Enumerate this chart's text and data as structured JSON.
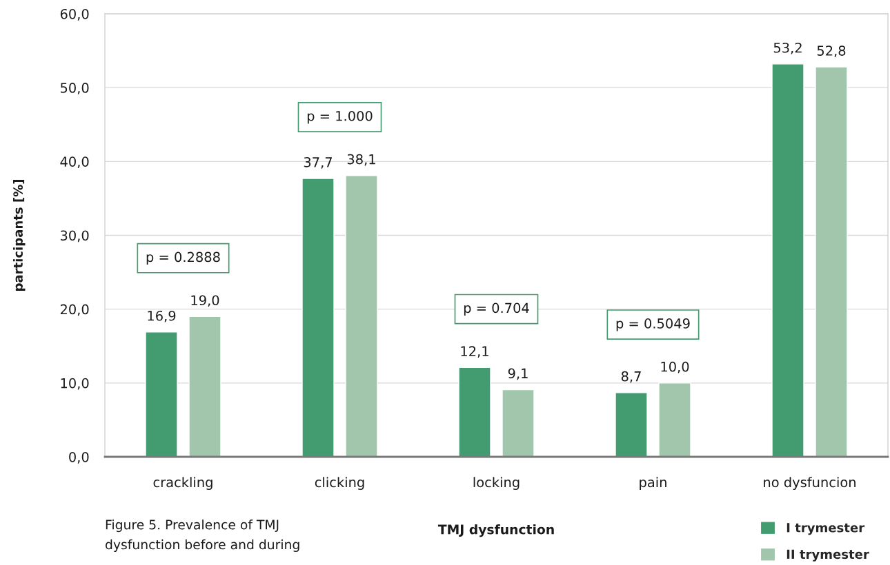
{
  "chart_data": {
    "type": "bar",
    "title": "Figure 5. Prevalence of TMJ dysfunction before and during",
    "xlabel": "TMJ dysfunction",
    "ylabel": "participants [%]",
    "categories": [
      "crackling",
      "clicking",
      "locking",
      "pain",
      "no dysfuncion"
    ],
    "series": [
      {
        "name": "I trymester",
        "color": "#439c70",
        "values": [
          16.9,
          37.7,
          12.1,
          8.7,
          53.2
        ],
        "value_labels": [
          "16,9",
          "37,7",
          "12,1",
          "8,7",
          "53,2"
        ]
      },
      {
        "name": "II trymester",
        "color": "#a2c6ac",
        "values": [
          19.0,
          38.1,
          9.1,
          10.0,
          52.8
        ],
        "value_labels": [
          "19,0",
          "38,1",
          "9,1",
          "10,0",
          "52,8"
        ]
      }
    ],
    "ylim": [
      0,
      60
    ],
    "yticks": [
      {
        "value": 0,
        "label": "0,0"
      },
      {
        "value": 10,
        "label": "10,0"
      },
      {
        "value": 20,
        "label": "20,0"
      },
      {
        "value": 30,
        "label": "30,0"
      },
      {
        "value": 40,
        "label": "40,0"
      },
      {
        "value": 50,
        "label": "50,0"
      },
      {
        "value": 60,
        "label": "60,0"
      }
    ],
    "grid": "y",
    "legend": "bottom right",
    "annotations": [
      "p = 0.2888",
      "p = 1.000",
      "p = 0.704",
      "p = 0.5049"
    ]
  }
}
